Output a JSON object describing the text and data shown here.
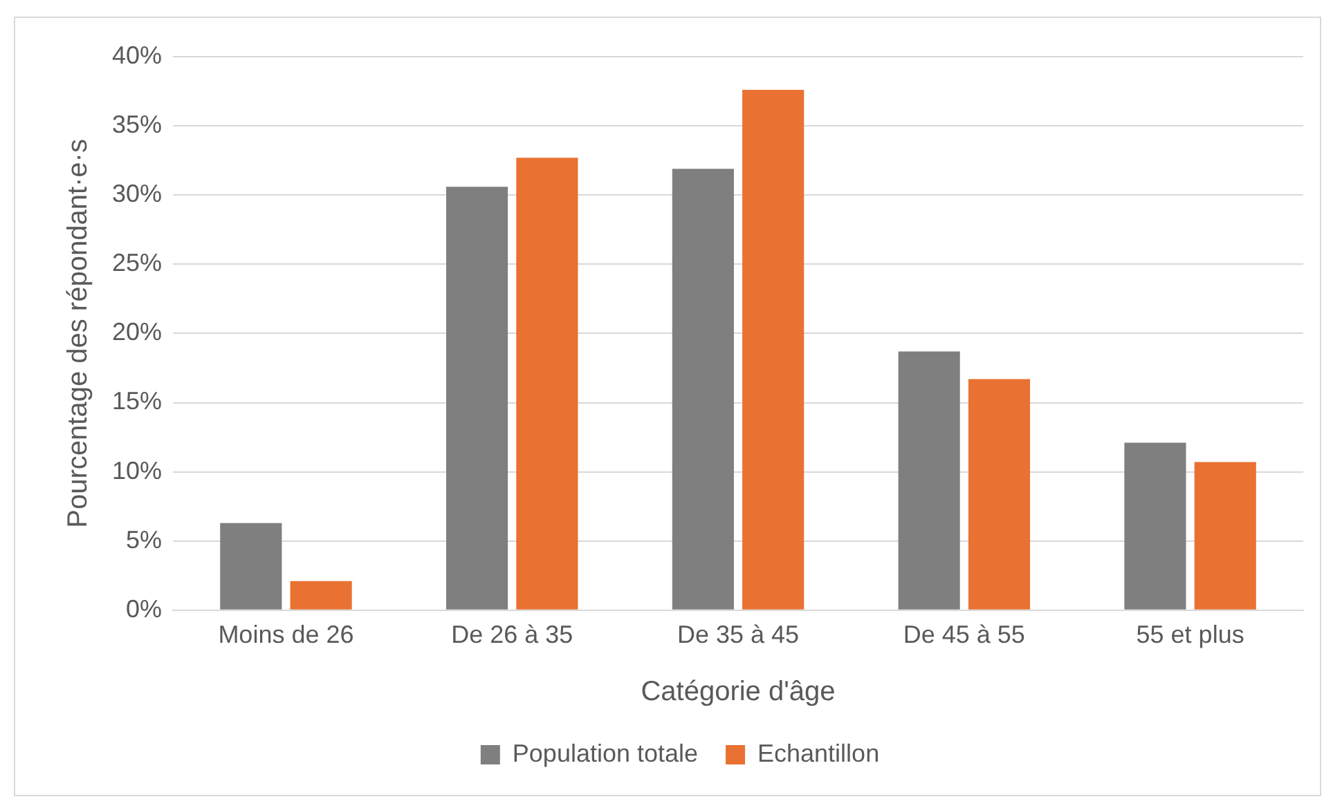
{
  "chart_data": {
    "type": "bar",
    "xlabel": "Catégorie d'âge",
    "ylabel": "Pourcentage des répondant·e·s",
    "categories": [
      "Moins de 26",
      "De 26 à 35",
      "De 35 à 45",
      "De 45 à 55",
      "55 et plus"
    ],
    "series": [
      {
        "name": "Population totale",
        "color": "#7f7f7f",
        "values": [
          6.3,
          30.6,
          31.9,
          18.7,
          12.1
        ]
      },
      {
        "name": "Echantillon",
        "color": "#e97132",
        "values": [
          2.1,
          32.7,
          37.6,
          16.7,
          10.7
        ]
      }
    ],
    "ylim": [
      0,
      40
    ],
    "yticks": [
      {
        "value": 0,
        "label": "0%"
      },
      {
        "value": 5,
        "label": "5%"
      },
      {
        "value": 10,
        "label": "10%"
      },
      {
        "value": 15,
        "label": "15%"
      },
      {
        "value": 20,
        "label": "20%"
      },
      {
        "value": 25,
        "label": "25%"
      },
      {
        "value": 30,
        "label": "30%"
      },
      {
        "value": 35,
        "label": "35%"
      },
      {
        "value": 40,
        "label": "40%"
      }
    ],
    "grid": "y",
    "legend": "bottom"
  }
}
